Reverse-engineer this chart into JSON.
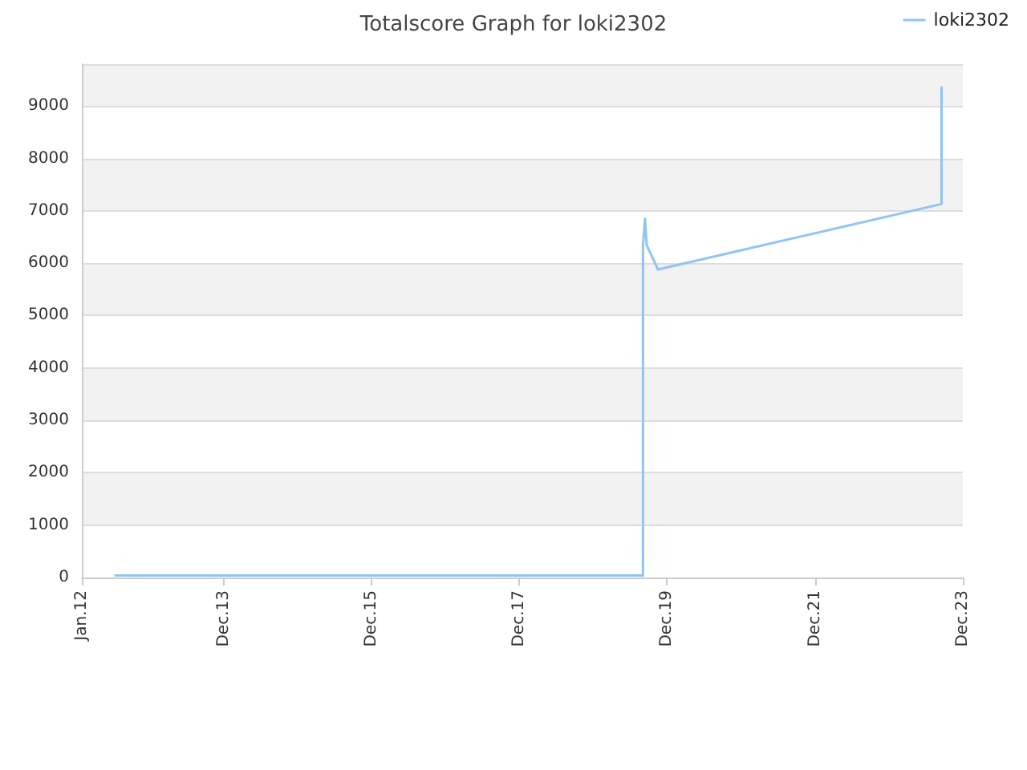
{
  "chart_data": {
    "type": "line",
    "title": "Totalscore Graph for loki2302",
    "x": [
      "2012-06-15",
      "2019-08-04",
      "2019-08-04",
      "2019-08-14",
      "2019-08-22",
      "2019-10-17",
      "2023-08-18",
      "2023-08-18"
    ],
    "series": [
      {
        "name": "loki2302",
        "color": "#90c4f2",
        "values": [
          40,
          40,
          6340,
          6850,
          6350,
          5880,
          7130,
          9360
        ]
      }
    ],
    "xlim": [
      "2012-01",
      "2023-12"
    ],
    "xticks": [
      {
        "value": "2012-01",
        "label": "Jan.12"
      },
      {
        "value": "2013-12",
        "label": "Dec.13"
      },
      {
        "value": "2015-12",
        "label": "Dec.15"
      },
      {
        "value": "2017-12",
        "label": "Dec.17"
      },
      {
        "value": "2019-12",
        "label": "Dec.19"
      },
      {
        "value": "2021-12",
        "label": "Dec.21"
      },
      {
        "value": "2023-12",
        "label": "Dec.23"
      }
    ],
    "ylim": [
      0,
      9800
    ],
    "yticks": [
      0,
      1000,
      2000,
      3000,
      4000,
      5000,
      6000,
      7000,
      8000,
      9000
    ],
    "grid": "y",
    "legend": "top right",
    "marker": "none",
    "line_style": "solid"
  }
}
